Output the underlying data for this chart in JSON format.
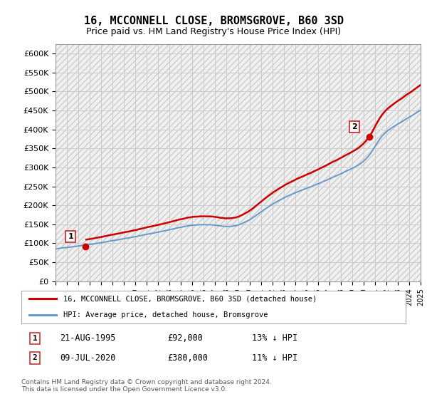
{
  "title": "16, MCCONNELL CLOSE, BROMSGROVE, B60 3SD",
  "subtitle": "Price paid vs. HM Land Registry's House Price Index (HPI)",
  "title_fontsize": 11,
  "subtitle_fontsize": 9,
  "ylim": [
    0,
    625000
  ],
  "yticks": [
    0,
    50000,
    100000,
    150000,
    200000,
    250000,
    300000,
    350000,
    400000,
    450000,
    500000,
    550000,
    600000
  ],
  "ytick_labels": [
    "£0",
    "£50K",
    "£100K",
    "£150K",
    "£200K",
    "£250K",
    "£300K",
    "£350K",
    "£400K",
    "£450K",
    "£500K",
    "£550K",
    "£600K"
  ],
  "hpi_color": "#6699cc",
  "price_color": "#cc0000",
  "grid_color": "#cccccc",
  "bg_color": "#f0f0f0",
  "marker1_year": 1995.64,
  "marker1_price": 92000,
  "marker2_year": 2020.52,
  "marker2_price": 380000,
  "legend_line1": "16, MCCONNELL CLOSE, BROMSGROVE, B60 3SD (detached house)",
  "legend_line2": "HPI: Average price, detached house, Bromsgrove",
  "table_row1_num": "1",
  "table_row1_date": "21-AUG-1995",
  "table_row1_price": "£92,000",
  "table_row1_hpi": "13% ↓ HPI",
  "table_row2_num": "2",
  "table_row2_date": "09-JUL-2020",
  "table_row2_price": "£380,000",
  "table_row2_hpi": "11% ↓ HPI",
  "footnote": "Contains HM Land Registry data © Crown copyright and database right 2024.\nThis data is licensed under the Open Government Licence v3.0.",
  "xmin": 1993,
  "xmax": 2025
}
